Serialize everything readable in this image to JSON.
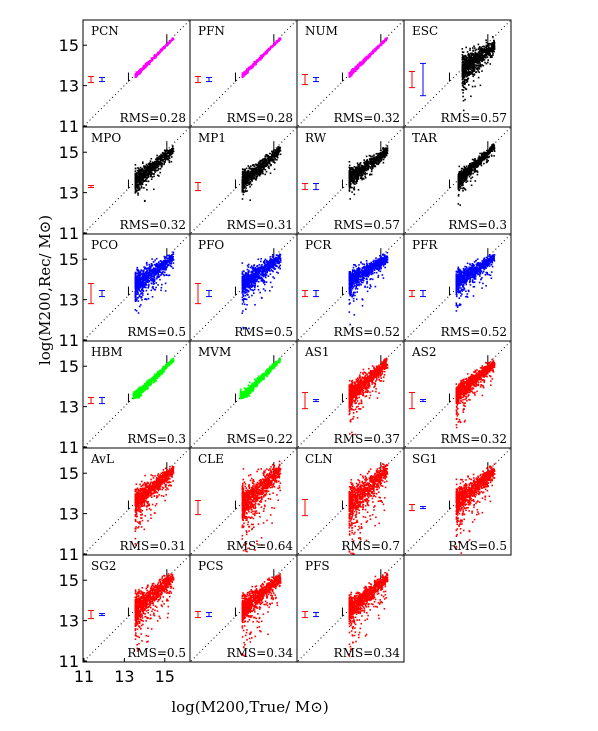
{
  "chart_data": {
    "type": "scatter",
    "grid": false,
    "xlabel": "log(M200,True/ M⊙)",
    "ylabel": "log(M200,Rec/ M⊙)",
    "xlim": [
      11,
      16.2
    ],
    "ylim": [
      11,
      16.2
    ],
    "xticks": [
      "11",
      "13",
      "15"
    ],
    "yticks": [
      "15",
      "13",
      "11"
    ],
    "colors": {
      "magenta": "#ff00ff",
      "black": "#000000",
      "blue": "#0000ff",
      "green": "#00ff00",
      "red": "#ff0000"
    },
    "panels": [
      {
        "name": "PCN",
        "rms": "RMS=0.28",
        "color": "magenta",
        "shape": "narrow",
        "xmin": 13.5,
        "slope": 0.98,
        "offset": 0.02,
        "lowfloor": 0.05,
        "scatter": 0.05,
        "errbar_red": 0.15,
        "errbar_blue": 0.1,
        "n": 500
      },
      {
        "name": "PFN",
        "rms": "RMS=0.28",
        "color": "magenta",
        "shape": "narrow",
        "xmin": 13.5,
        "slope": 0.98,
        "offset": 0.02,
        "lowfloor": 0.05,
        "scatter": 0.05,
        "errbar_red": 0.15,
        "errbar_blue": 0.1,
        "n": 500
      },
      {
        "name": "NUM",
        "rms": "RMS=0.32",
        "color": "magenta",
        "shape": "narrow",
        "xmin": 13.5,
        "slope": 0.98,
        "offset": 0.05,
        "lowfloor": 0.05,
        "scatter": 0.06,
        "errbar_red": 0.25,
        "errbar_blue": 0.1,
        "n": 500
      },
      {
        "name": "ESC",
        "rms": "RMS=0.57",
        "color": "black",
        "shape": "wide",
        "xmin": 13.8,
        "slope": 0.72,
        "offset": 0.15,
        "lowfloor": 0.2,
        "scatter": 0.35,
        "errbar_red": 0.4,
        "errbar_blue": 0.8,
        "n": 800
      },
      {
        "name": "MPO",
        "rms": "RMS=0.32",
        "color": "black",
        "shape": "wide",
        "xmin": 13.5,
        "slope": 0.82,
        "offset": 0.1,
        "lowfloor": 0.1,
        "scatter": 0.25,
        "errbar_red": 0.02,
        "errbar_blue": null,
        "n": 700
      },
      {
        "name": "MP1",
        "rms": "RMS=0.31",
        "color": "black",
        "shape": "wide",
        "xmin": 13.5,
        "slope": 0.82,
        "offset": 0.1,
        "lowfloor": 0.1,
        "scatter": 0.25,
        "errbar_red": 0.2,
        "errbar_blue": null,
        "n": 700
      },
      {
        "name": "RW",
        "rms": "RMS=0.57",
        "color": "black",
        "shape": "wide",
        "xmin": 13.5,
        "slope": 0.72,
        "offset": 0.25,
        "lowfloor": 0.1,
        "scatter": 0.25,
        "errbar_red": 0.15,
        "errbar_blue": 0.15,
        "n": 700
      },
      {
        "name": "TAR",
        "rms": "RMS=0.3",
        "color": "black",
        "shape": "wide",
        "xmin": 13.6,
        "slope": 0.95,
        "offset": 0.05,
        "lowfloor": 0.1,
        "scatter": 0.2,
        "errbar_red": null,
        "errbar_blue": null,
        "n": 700
      },
      {
        "name": "PCO",
        "rms": "RMS=0.5",
        "color": "blue",
        "shape": "wide",
        "xmin": 13.5,
        "slope": 0.7,
        "offset": 0.3,
        "lowfloor": 0.2,
        "scatter": 0.3,
        "errbar_red": 0.5,
        "errbar_blue": 0.15,
        "n": 800
      },
      {
        "name": "PFO",
        "rms": "RMS=0.5",
        "color": "blue",
        "shape": "wide",
        "xmin": 13.5,
        "slope": 0.7,
        "offset": 0.3,
        "lowfloor": 0.2,
        "scatter": 0.3,
        "errbar_red": 0.5,
        "errbar_blue": 0.15,
        "n": 800
      },
      {
        "name": "PCR",
        "rms": "RMS=0.52",
        "color": "blue",
        "shape": "wide",
        "xmin": 13.5,
        "slope": 0.62,
        "offset": 0.45,
        "lowfloor": 0.2,
        "scatter": 0.25,
        "errbar_red": 0.15,
        "errbar_blue": 0.15,
        "n": 800
      },
      {
        "name": "PFR",
        "rms": "RMS=0.52",
        "color": "blue",
        "shape": "wide",
        "xmin": 13.5,
        "slope": 0.62,
        "offset": 0.45,
        "lowfloor": 0.2,
        "scatter": 0.25,
        "errbar_red": 0.15,
        "errbar_blue": 0.15,
        "n": 800
      },
      {
        "name": "HBM",
        "rms": "RMS=0.3",
        "color": "green",
        "shape": "narrow",
        "xmin": 13.4,
        "slope": 0.95,
        "offset": 0.05,
        "lowfloor": 0.1,
        "scatter": 0.12,
        "errbar_red": 0.15,
        "errbar_blue": 0.15,
        "n": 700
      },
      {
        "name": "MVM",
        "rms": "RMS=0.22",
        "color": "green",
        "shape": "narrow",
        "xmin": 13.4,
        "slope": 0.95,
        "offset": 0.05,
        "lowfloor": 0.1,
        "scatter": 0.12,
        "errbar_red": null,
        "errbar_blue": null,
        "n": 700
      },
      {
        "name": "AS1",
        "rms": "RMS=0.37",
        "color": "red",
        "shape": "wide",
        "xmin": 13.5,
        "slope": 0.85,
        "offset": 0.1,
        "lowfloor": 0.2,
        "scatter": 0.3,
        "errbar_red": 0.4,
        "errbar_blue": 0.05,
        "n": 900
      },
      {
        "name": "AS2",
        "rms": "RMS=0.32",
        "color": "red",
        "shape": "wide",
        "xmin": 13.5,
        "slope": 0.85,
        "offset": 0.1,
        "lowfloor": 0.2,
        "scatter": 0.25,
        "errbar_red": 0.4,
        "errbar_blue": 0.05,
        "n": 900
      },
      {
        "name": "AvL",
        "rms": "RMS=0.31",
        "color": "red",
        "shape": "wide",
        "xmin": 13.5,
        "slope": 0.85,
        "offset": 0.1,
        "lowfloor": 0.2,
        "scatter": 0.3,
        "errbar_red": null,
        "errbar_blue": null,
        "n": 900
      },
      {
        "name": "CLE",
        "rms": "RMS=0.64",
        "color": "red",
        "shape": "wide",
        "xmin": 13.5,
        "slope": 0.9,
        "offset": 0.0,
        "lowfloor": 0.4,
        "scatter": 0.45,
        "errbar_red": 0.35,
        "errbar_blue": null,
        "n": 900
      },
      {
        "name": "CLN",
        "rms": "RMS=0.7",
        "color": "red",
        "shape": "wide",
        "xmin": 13.5,
        "slope": 0.9,
        "offset": 0.0,
        "lowfloor": 0.4,
        "scatter": 0.45,
        "errbar_red": 0.4,
        "errbar_blue": null,
        "n": 900
      },
      {
        "name": "SG1",
        "rms": "RMS=0.5",
        "color": "red",
        "shape": "wide",
        "xmin": 13.5,
        "slope": 0.82,
        "offset": 0.1,
        "lowfloor": 0.3,
        "scatter": 0.35,
        "errbar_red": 0.15,
        "errbar_blue": 0.0,
        "n": 900
      },
      {
        "name": "SG2",
        "rms": "RMS=0.5",
        "color": "red",
        "shape": "wide",
        "xmin": 13.5,
        "slope": 0.82,
        "offset": 0.1,
        "lowfloor": 0.3,
        "scatter": 0.35,
        "errbar_red": 0.2,
        "errbar_blue": 0.0,
        "n": 900
      },
      {
        "name": "PCS",
        "rms": "RMS=0.34",
        "color": "red",
        "shape": "wide",
        "xmin": 13.5,
        "slope": 0.82,
        "offset": 0.1,
        "lowfloor": 0.3,
        "scatter": 0.3,
        "errbar_red": 0.15,
        "errbar_blue": 0.1,
        "n": 900
      },
      {
        "name": "PFS",
        "rms": "RMS=0.34",
        "color": "red",
        "shape": "wide",
        "xmin": 13.5,
        "slope": 0.82,
        "offset": 0.1,
        "lowfloor": 0.3,
        "scatter": 0.3,
        "errbar_red": 0.15,
        "errbar_blue": 0.1,
        "n": 900
      }
    ]
  }
}
